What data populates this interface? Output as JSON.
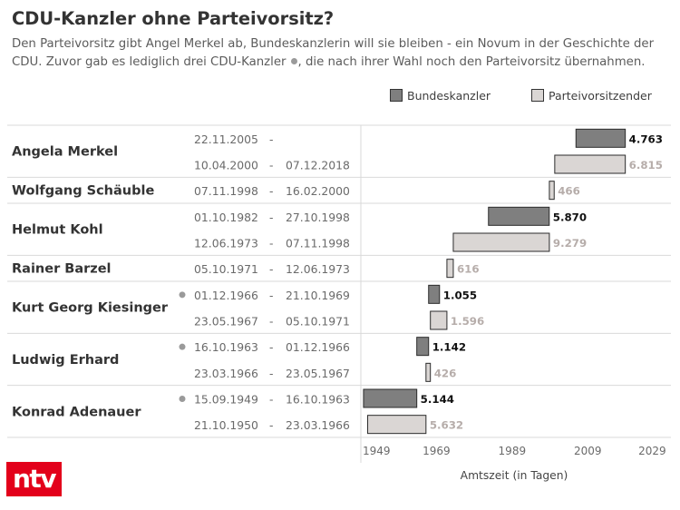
{
  "chart_data": {
    "type": "bar",
    "title": "CDU-Kanzler ohne Parteivorsitz?",
    "subtitle": {
      "line1": "Den Parteivorsitz gibt Angel Merkel ab, Bundeskanzlerin will sie bleiben - ein Novum in der Geschichte der",
      "line2_before_marker": "CDU. Zuvor gab es lediglich drei CDU-Kanzler",
      "line2_after_marker": ", die nach ihrer Wahl noch den Parteivorsitz übernahmen."
    },
    "legend": {
      "position": "top-right",
      "entries": [
        {
          "name": "Bundeskanzler",
          "color": "#7f7f7f"
        },
        {
          "name": "Parteivorsitzender",
          "color": "#dad6d4"
        }
      ]
    },
    "value_label_colors": [
      "#111111",
      "#b6adaa"
    ],
    "bar_stroke": "#2b2b2b",
    "marker_color": "#9a9a9a",
    "date_separator": "-",
    "xlabel": "Amtszeit (in Tagen)",
    "xticks": [
      1949,
      1969,
      1989,
      2009,
      2029
    ],
    "xlim": [
      1949,
      2031
    ],
    "grid": false,
    "groups": [
      {
        "name": "Angela Merkel",
        "rows": [
          {
            "series": 0,
            "start": "22.11.2005",
            "end": "",
            "days": 4763,
            "days_label": "4.763",
            "marker": false
          },
          {
            "series": 1,
            "start": "10.04.2000",
            "end": "07.12.2018",
            "days": 6815,
            "days_label": "6.815",
            "marker": false
          }
        ]
      },
      {
        "name": "Wolfgang Schäuble",
        "rows": [
          {
            "series": 1,
            "start": "07.11.1998",
            "end": "16.02.2000",
            "days": 466,
            "days_label": "466",
            "marker": false
          }
        ]
      },
      {
        "name": "Helmut Kohl",
        "rows": [
          {
            "series": 0,
            "start": "01.10.1982",
            "end": "27.10.1998",
            "days": 5870,
            "days_label": "5.870",
            "marker": false
          },
          {
            "series": 1,
            "start": "12.06.1973",
            "end": "07.11.1998",
            "days": 9279,
            "days_label": "9.279",
            "marker": false
          }
        ]
      },
      {
        "name": "Rainer Barzel",
        "rows": [
          {
            "series": 1,
            "start": "05.10.1971",
            "end": "12.06.1973",
            "days": 616,
            "days_label": "616",
            "marker": false
          }
        ]
      },
      {
        "name": "Kurt Georg Kiesinger",
        "rows": [
          {
            "series": 0,
            "start": "01.12.1966",
            "end": "21.10.1969",
            "days": 1055,
            "days_label": "1.055",
            "marker": true
          },
          {
            "series": 1,
            "start": "23.05.1967",
            "end": "05.10.1971",
            "days": 1596,
            "days_label": "1.596",
            "marker": false
          }
        ]
      },
      {
        "name": "Ludwig Erhard",
        "rows": [
          {
            "series": 0,
            "start": "16.10.1963",
            "end": "01.12.1966",
            "days": 1142,
            "days_label": "1.142",
            "marker": true
          },
          {
            "series": 1,
            "start": "23.03.1966",
            "end": "23.05.1967",
            "days": 426,
            "days_label": "426",
            "marker": false
          }
        ]
      },
      {
        "name": "Konrad Adenauer",
        "rows": [
          {
            "series": 0,
            "start": "15.09.1949",
            "end": "16.10.1963",
            "days": 5144,
            "days_label": "5.144",
            "marker": true
          },
          {
            "series": 1,
            "start": "21.10.1950",
            "end": "23.03.1966",
            "days": 5632,
            "days_label": "5.632",
            "marker": false
          }
        ]
      }
    ]
  },
  "branding": {
    "logo_text": "ntv",
    "logo_color": "#e3001b"
  }
}
